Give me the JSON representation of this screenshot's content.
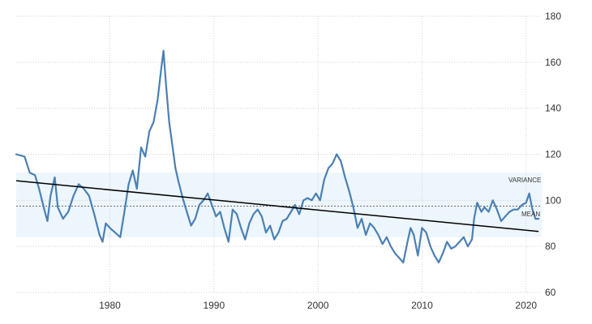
{
  "chart_data": {
    "type": "line",
    "title": "",
    "xlabel": "",
    "ylabel": "",
    "xlim": [
      1971,
      2021.5
    ],
    "ylim": [
      60,
      180
    ],
    "x_ticks": [
      1980,
      1990,
      2000,
      2010,
      2020
    ],
    "y_ticks": [
      60,
      80,
      100,
      120,
      140,
      160,
      180
    ],
    "grid": {
      "x": true,
      "y": true,
      "style": "dotted"
    },
    "y_axis_side": "right",
    "colors": {
      "series": "#4a80b4",
      "band": "#edf5fd",
      "trend": "#000000",
      "mean": "#555555",
      "grid": "#d0d0d0"
    },
    "annotations": {
      "variance_label": "VARIANCE",
      "mean_label": "MEAN"
    },
    "variance_band": [
      84,
      112
    ],
    "mean": 97.5,
    "trend": {
      "x": [
        1971,
        2021.2
      ],
      "y": [
        108.5,
        86.5
      ]
    },
    "series": [
      {
        "values": [
          [
            1971.0,
            120
          ],
          [
            1971.8,
            119
          ],
          [
            1972.3,
            112
          ],
          [
            1972.8,
            111
          ],
          [
            1973.2,
            105
          ],
          [
            1973.7,
            96
          ],
          [
            1974.0,
            91
          ],
          [
            1974.3,
            102
          ],
          [
            1974.7,
            110
          ],
          [
            1975.0,
            97
          ],
          [
            1975.5,
            92
          ],
          [
            1976.0,
            95
          ],
          [
            1976.5,
            102
          ],
          [
            1977.0,
            107
          ],
          [
            1977.5,
            105
          ],
          [
            1978.0,
            102
          ],
          [
            1978.5,
            94
          ],
          [
            1979.0,
            85
          ],
          [
            1979.3,
            82
          ],
          [
            1979.6,
            90
          ],
          [
            1980.0,
            88
          ],
          [
            1980.5,
            86
          ],
          [
            1981.0,
            84
          ],
          [
            1981.4,
            95
          ],
          [
            1981.8,
            107
          ],
          [
            1982.2,
            113
          ],
          [
            1982.6,
            105
          ],
          [
            1983.0,
            123
          ],
          [
            1983.4,
            119
          ],
          [
            1983.8,
            130
          ],
          [
            1984.2,
            134
          ],
          [
            1984.6,
            144
          ],
          [
            1984.9,
            156
          ],
          [
            1985.15,
            165
          ],
          [
            1985.4,
            150
          ],
          [
            1985.7,
            134
          ],
          [
            1986.0,
            124
          ],
          [
            1986.3,
            114
          ],
          [
            1986.6,
            108
          ],
          [
            1987.0,
            101
          ],
          [
            1987.4,
            95
          ],
          [
            1987.8,
            89
          ],
          [
            1988.2,
            92
          ],
          [
            1988.6,
            98
          ],
          [
            1989.0,
            100
          ],
          [
            1989.4,
            103
          ],
          [
            1989.8,
            98
          ],
          [
            1990.2,
            93
          ],
          [
            1990.6,
            95
          ],
          [
            1991.0,
            88
          ],
          [
            1991.4,
            82
          ],
          [
            1991.8,
            96
          ],
          [
            1992.2,
            94
          ],
          [
            1992.6,
            88
          ],
          [
            1993.0,
            83
          ],
          [
            1993.4,
            90
          ],
          [
            1993.8,
            94
          ],
          [
            1994.2,
            96
          ],
          [
            1994.6,
            93
          ],
          [
            1995.0,
            86
          ],
          [
            1995.4,
            89
          ],
          [
            1995.8,
            83
          ],
          [
            1996.2,
            86
          ],
          [
            1996.6,
            91
          ],
          [
            1997.0,
            92
          ],
          [
            1997.4,
            95
          ],
          [
            1997.8,
            98
          ],
          [
            1998.2,
            94
          ],
          [
            1998.6,
            100
          ],
          [
            1999.0,
            101
          ],
          [
            1999.4,
            100
          ],
          [
            1999.8,
            103
          ],
          [
            2000.2,
            100
          ],
          [
            2000.6,
            109
          ],
          [
            2001.0,
            114
          ],
          [
            2001.4,
            116
          ],
          [
            2001.8,
            120
          ],
          [
            2002.2,
            117
          ],
          [
            2002.6,
            110
          ],
          [
            2003.0,
            104
          ],
          [
            2003.4,
            97
          ],
          [
            2003.8,
            88
          ],
          [
            2004.2,
            92
          ],
          [
            2004.6,
            85
          ],
          [
            2005.0,
            90
          ],
          [
            2005.4,
            88
          ],
          [
            2005.8,
            85
          ],
          [
            2006.2,
            81
          ],
          [
            2006.6,
            84
          ],
          [
            2007.0,
            80
          ],
          [
            2007.4,
            77
          ],
          [
            2007.8,
            75
          ],
          [
            2008.2,
            73
          ],
          [
            2008.6,
            82
          ],
          [
            2008.9,
            88
          ],
          [
            2009.2,
            85
          ],
          [
            2009.6,
            76
          ],
          [
            2010.0,
            88
          ],
          [
            2010.4,
            86
          ],
          [
            2010.8,
            80
          ],
          [
            2011.2,
            76
          ],
          [
            2011.6,
            73
          ],
          [
            2012.0,
            77
          ],
          [
            2012.4,
            82
          ],
          [
            2012.8,
            79
          ],
          [
            2013.2,
            80
          ],
          [
            2013.6,
            82
          ],
          [
            2014.0,
            84
          ],
          [
            2014.4,
            80
          ],
          [
            2014.8,
            83
          ],
          [
            2015.0,
            92
          ],
          [
            2015.3,
            99
          ],
          [
            2015.7,
            95
          ],
          [
            2016.0,
            97
          ],
          [
            2016.4,
            95
          ],
          [
            2016.8,
            100
          ],
          [
            2017.2,
            96
          ],
          [
            2017.6,
            91
          ],
          [
            2018.0,
            93
          ],
          [
            2018.4,
            95
          ],
          [
            2018.8,
            96
          ],
          [
            2019.2,
            96
          ],
          [
            2019.6,
            98
          ],
          [
            2020.0,
            99
          ],
          [
            2020.3,
            103
          ],
          [
            2020.6,
            96
          ],
          [
            2020.9,
            92
          ],
          [
            2021.2,
            92
          ]
        ]
      }
    ]
  }
}
